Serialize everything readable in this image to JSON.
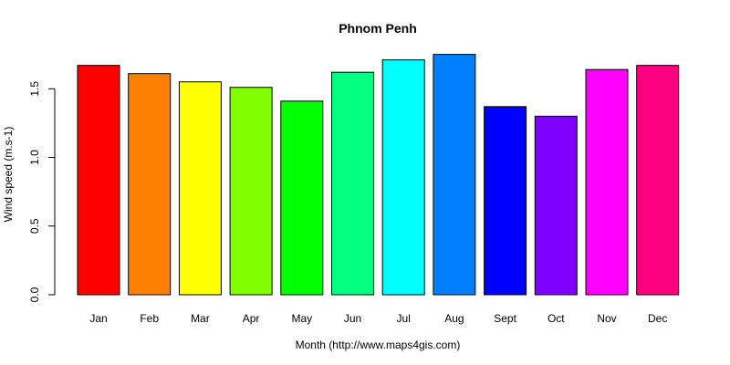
{
  "chart_data": {
    "type": "bar",
    "title": "Phnom Penh",
    "xlabel": "Month (http://www.maps4gis.com)",
    "ylabel": "Wind speed (m.s-1)",
    "categories": [
      "Jan",
      "Feb",
      "Mar",
      "Apr",
      "May",
      "Jun",
      "Jul",
      "Aug",
      "Sept",
      "Oct",
      "Nov",
      "Dec"
    ],
    "values": [
      1.67,
      1.61,
      1.55,
      1.51,
      1.41,
      1.62,
      1.71,
      1.75,
      1.37,
      1.3,
      1.64,
      1.67
    ],
    "colors": [
      "#FF0000",
      "#FF8000",
      "#FFFF00",
      "#80FF00",
      "#00FF00",
      "#00FF80",
      "#00FFFF",
      "#0080FF",
      "#0000FF",
      "#8000FF",
      "#FF00FF",
      "#FF0080"
    ],
    "yticks": [
      0.0,
      0.5,
      1.0,
      1.5
    ],
    "ytick_labels": [
      "0.0",
      "0.5",
      "1.0",
      "1.5"
    ],
    "ylim": [
      0,
      1.75
    ],
    "grid": false,
    "legend": "none"
  }
}
